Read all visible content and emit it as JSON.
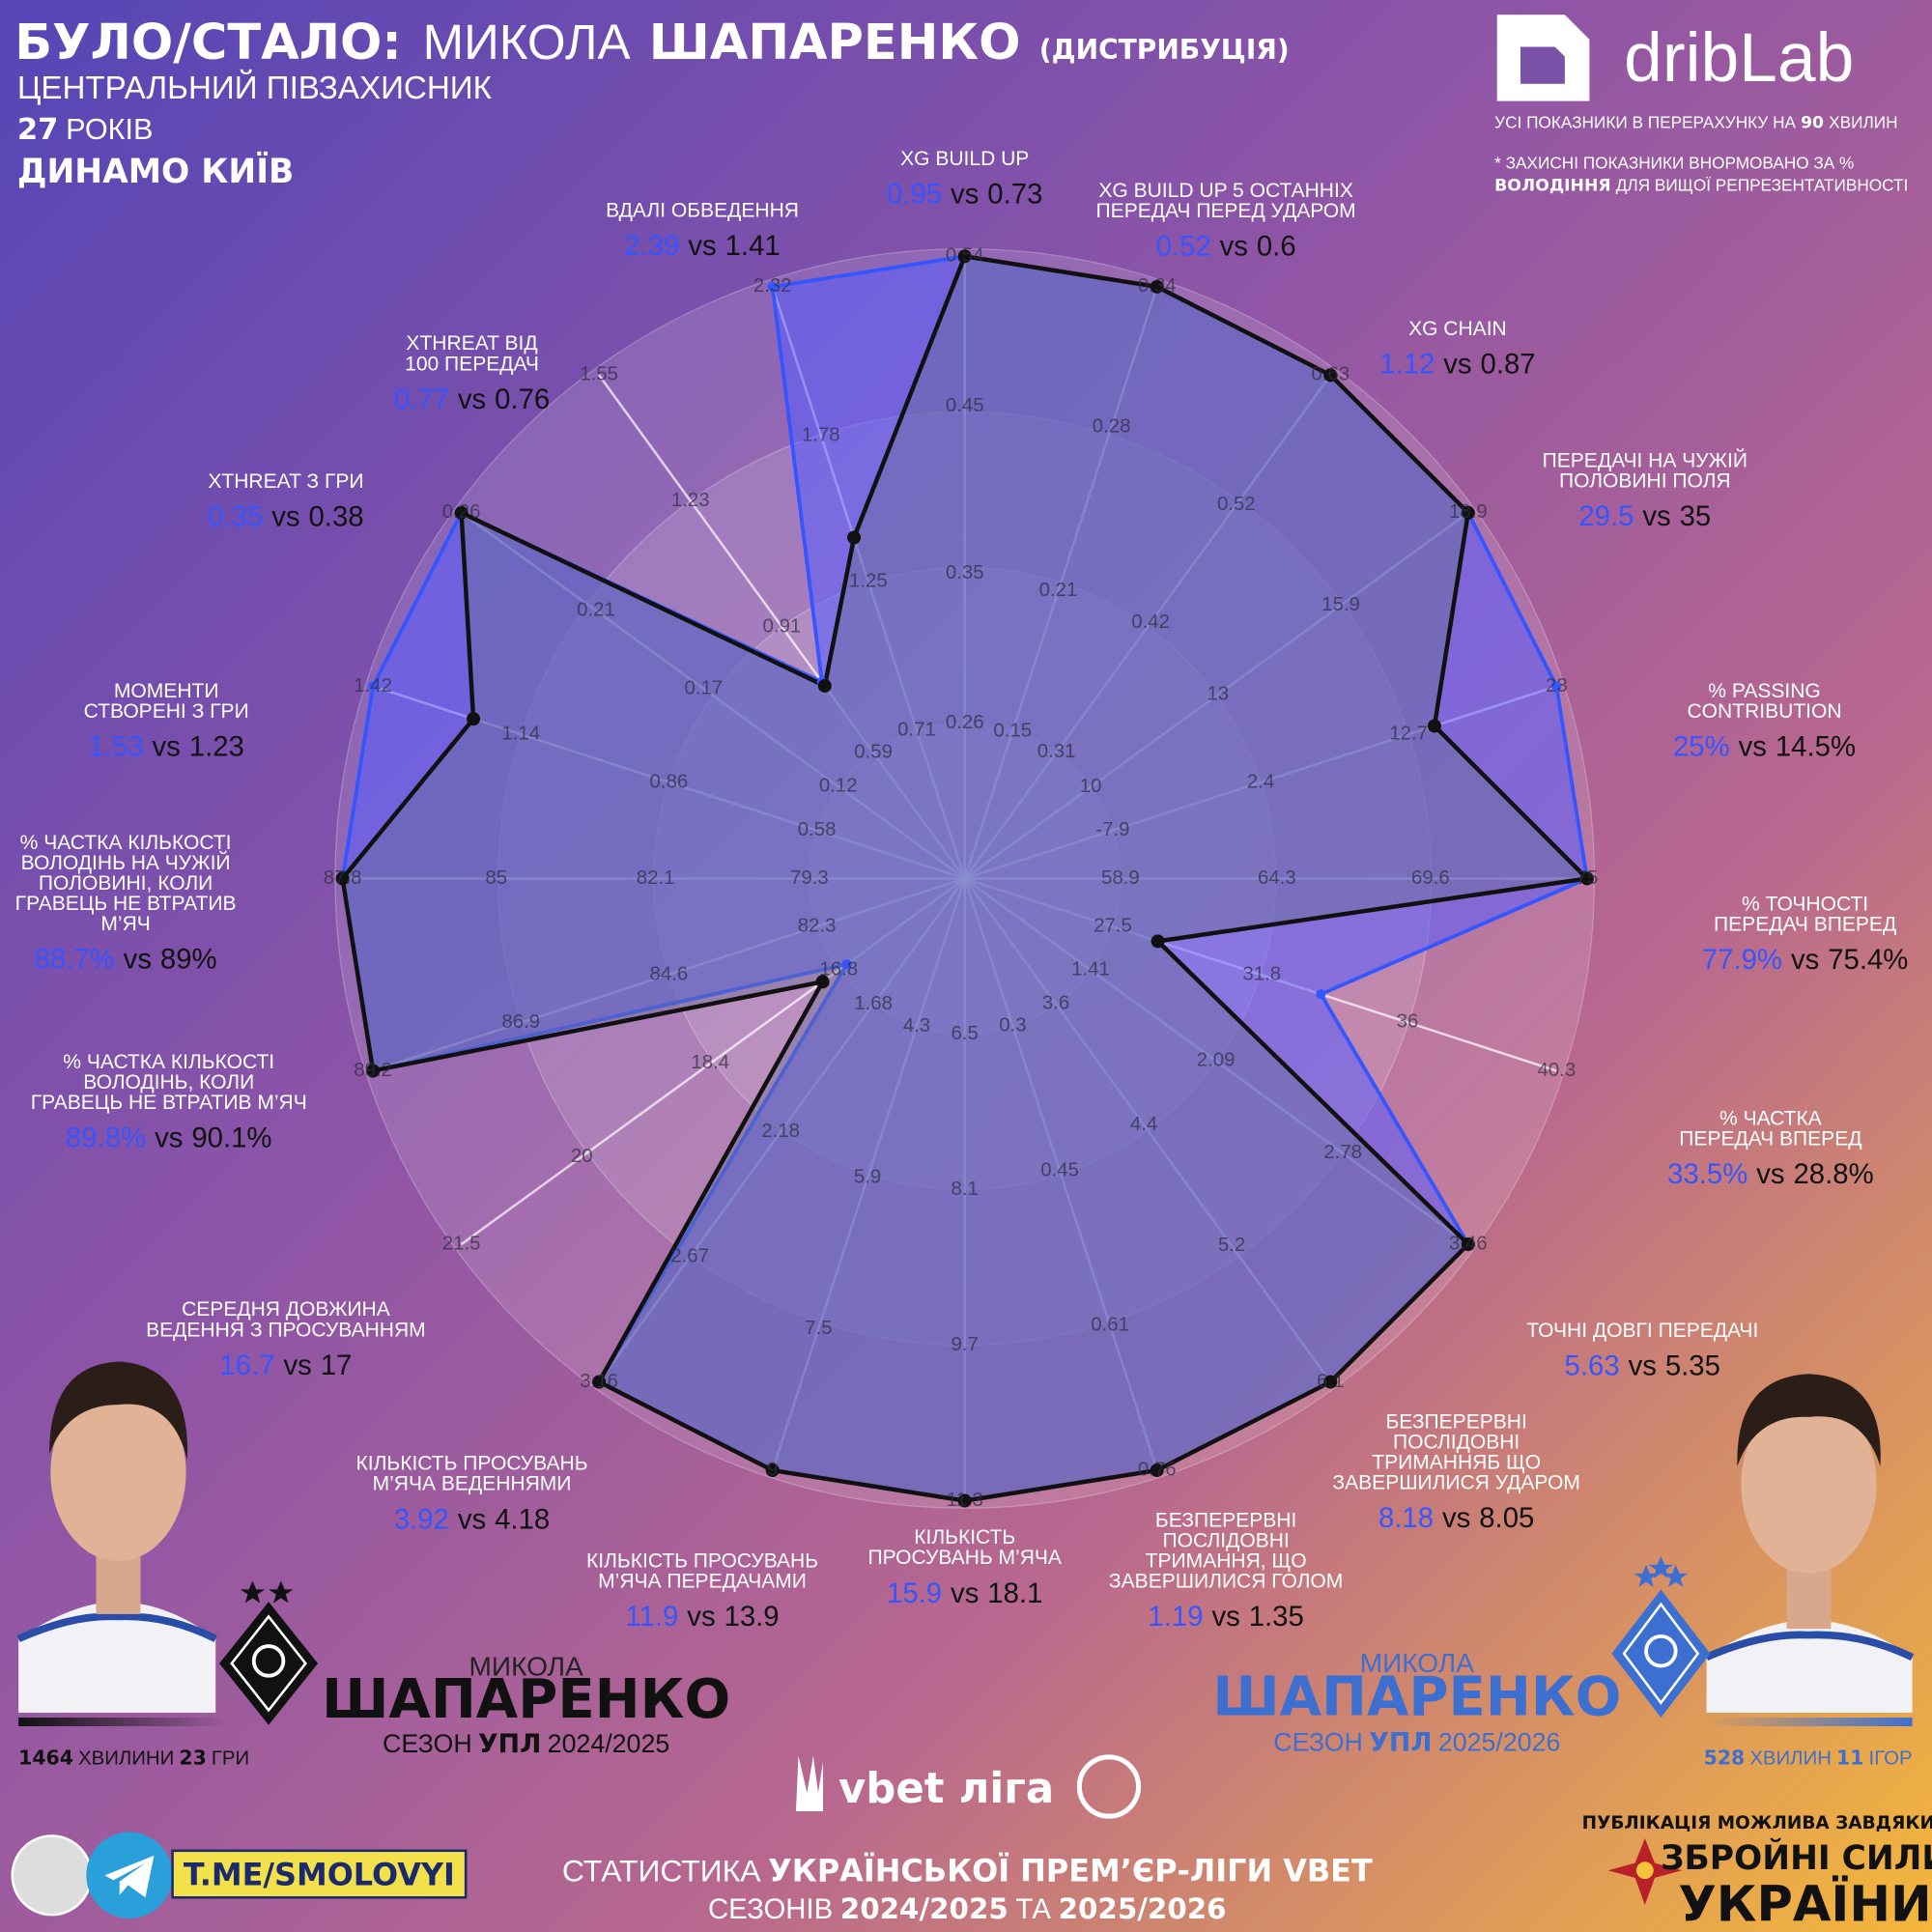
{
  "header": {
    "title": [
      "БУЛО/СТАЛО:",
      "МИКОЛА",
      "ШАПАРЕНКО",
      "(ДИСТРИБУЦІЯ)"
    ],
    "position": "ЦЕНТРАЛЬНИЙ ПІВЗАХИСНИК",
    "age": [
      "27",
      "РОКІВ"
    ],
    "club": "ДИНАМО КИЇВ"
  },
  "brand": {
    "name": "dribLab",
    "note": [
      "УСІ ПОКАЗНИКИ В ПЕРЕРАХУНКУ НА",
      "90",
      "ХВИЛИН"
    ],
    "footnote": [
      "* ЗАХИСНІ ПОКАЗНИКИ ВНОРМОВАНО ЗА %",
      "ВОЛОДІННЯ",
      "ДЛЯ ВИЩОЇ РЕПРЕЗЕНТАТИВНОСТІ"
    ]
  },
  "chart_data": {
    "type": "radar",
    "separator": "vs",
    "categories": [
      [
        "XG BUILD UP"
      ],
      [
        "XG BUILD UP 5 ОСТАННІХ",
        "ПЕРЕДАЧ ПЕРЕД УДАРОМ"
      ],
      [
        "XG CHAIN"
      ],
      [
        "ПЕРЕДАЧІ НА ЧУЖІЙ",
        "ПОЛОВИНІ ПОЛЯ"
      ],
      [
        "% PASSING",
        "CONTRIBUTION"
      ],
      [
        "% ТОЧНОСТІ",
        "ПЕРЕДАЧ ВПЕРЕД"
      ],
      [
        "% ЧАСТКА",
        "ПЕРЕДАЧ ВПЕРЕД"
      ],
      [
        "ТОЧНІ ДОВГІ ПЕРЕДАЧІ"
      ],
      [
        "БЕЗПЕРЕРВНІ",
        "ПОСЛІДОВНІ",
        "ТРИМАННЯБ ЩО",
        "ЗАВЕРШИЛИСЯ УДАРОМ"
      ],
      [
        "БЕЗПЕРЕРВНІ",
        "ПОСЛІДОВНІ",
        "ТРИМАННЯ, ЩО",
        "ЗАВЕРШИЛИСЯ ГОЛОМ"
      ],
      [
        "КІЛЬКІСТЬ",
        "ПРОСУВАНЬ М’ЯЧА"
      ],
      [
        "КІЛЬКІСТЬ ПРОСУВАНЬ",
        "М’ЯЧА ПЕРЕДАЧАМИ"
      ],
      [
        "КІЛЬКІСТЬ ПРОСУВАНЬ",
        "М’ЯЧА ВЕДЕННЯМИ"
      ],
      [
        "СЕРЕДНЯ ДОВЖИНА",
        "ВЕДЕННЯ З ПРОСУВАННЯМ"
      ],
      [
        "% ЧАСТКА КІЛЬКОСТІ",
        "ВОЛОДІНЬ, КОЛИ",
        "ГРАВЕЦЬ НЕ ВТРАТИВ М’ЯЧ"
      ],
      [
        "% ЧАСТКА КІЛЬКОСТІ",
        "ВОЛОДІНЬ НА ЧУЖІЙ",
        "ПОЛОВИНІ, КОЛИ",
        "ГРАВЕЦЬ НЕ ВТРАТИВ",
        "М’ЯЧ"
      ],
      [
        "МОМЕНТИ",
        "СТВОРЕНІ З ГРИ"
      ],
      [
        "XTHREAT З ГРИ"
      ],
      [
        "XTHREAT ВІД",
        "100 ПЕРЕДАЧ"
      ],
      [
        "ВДАЛІ ОБВЕДЕННЯ"
      ]
    ],
    "axes": [
      {
        "ylim": [
          0.167,
          0.54
        ],
        "yticks": [
          0.26,
          0.35,
          0.45,
          0.54
        ]
      },
      {
        "ylim": [
          0.087,
          0.34
        ],
        "yticks": [
          0.15,
          0.21,
          0.28,
          0.34
        ]
      },
      {
        "ylim": [
          0.203,
          0.63
        ],
        "yticks": [
          0.31,
          0.42,
          0.52,
          0.63
        ]
      },
      {
        "ylim": [
          7.03,
          18.9
        ],
        "yticks": [
          10,
          13,
          15.9,
          18.9
        ]
      },
      {
        "ylim": [
          -18.2,
          23
        ],
        "yticks": [
          -7.9,
          2.4,
          12.7,
          23
        ]
      },
      {
        "ylim": [
          53.53,
          75
        ],
        "yticks": [
          58.9,
          64.3,
          69.6,
          75
        ]
      },
      {
        "ylim": [
          23.23,
          40.3
        ],
        "yticks": [
          27.5,
          31.8,
          36,
          40.3
        ]
      },
      {
        "ylim": [
          0.727,
          3.46
        ],
        "yticks": [
          1.41,
          2.09,
          2.78,
          3.46
        ]
      },
      {
        "ylim": [
          2.77,
          6.1
        ],
        "yticks": [
          3.6,
          4.4,
          5.2,
          6.1
        ]
      },
      {
        "ylim": [
          0.147,
          0.76
        ],
        "yticks": [
          0.3,
          0.45,
          0.61,
          0.76
        ]
      },
      {
        "ylim": [
          4.9,
          11.3
        ],
        "yticks": [
          6.5,
          8.1,
          9.7,
          11.3
        ]
      },
      {
        "ylim": [
          2.73,
          9
        ],
        "yticks": [
          4.3,
          5.9,
          7.5,
          9
        ]
      },
      {
        "ylim": [
          1.187,
          3.16
        ],
        "yticks": [
          1.68,
          2.18,
          2.67,
          3.16
        ]
      },
      {
        "ylim": [
          15.23,
          21.5
        ],
        "yticks": [
          16.8,
          18.4,
          20,
          21.5
        ]
      },
      {
        "ylim": [
          80,
          89.2
        ],
        "yticks": [
          82.3,
          84.6,
          86.9,
          89.2
        ]
      },
      {
        "ylim": [
          76.47,
          87.8
        ],
        "yticks": [
          79.3,
          82.1,
          85,
          87.8
        ]
      },
      {
        "ylim": [
          0.3,
          1.42
        ],
        "yticks": [
          0.58,
          0.86,
          1.14,
          1.42
        ]
      },
      {
        "ylim": [
          0.073,
          0.26
        ],
        "yticks": [
          0.12,
          0.17,
          0.21,
          0.26
        ]
      },
      {
        "ylim": [
          0.27,
          1.55
        ],
        "yticks": [
          0.59,
          0.91,
          1.23,
          1.55
        ]
      },
      {
        "ylim": [
          0.173,
          2.32
        ],
        "yticks": [
          0.71,
          1.25,
          1.78,
          2.32
        ]
      }
    ],
    "series": [
      {
        "color": "#3556ff",
        "values": [
          0.95,
          0.52,
          1.12,
          29.5,
          25,
          77.9,
          33.5,
          5.63,
          8.18,
          1.19,
          15.9,
          11.9,
          3.92,
          16.7,
          89.8,
          88.7,
          1.53,
          0.35,
          0.77,
          2.39
        ],
        "value_labels": [
          "0.95",
          "0.52",
          "1.12",
          "29.5",
          "25%",
          "77.9%",
          "33.5%",
          "5.63",
          "8.18",
          "1.19",
          "15.9",
          "11.9",
          "3.92",
          "16.7",
          "89.8%",
          "88.7%",
          "1.53",
          "0.35",
          "0.77",
          "2.39"
        ]
      },
      {
        "color": "#111111",
        "values": [
          0.73,
          0.6,
          0.87,
          35,
          14.5,
          75.4,
          28.8,
          5.35,
          8.05,
          1.35,
          18.1,
          13.9,
          4.18,
          17,
          90.1,
          89,
          1.23,
          0.38,
          0.76,
          1.41
        ],
        "value_labels": [
          "0.73",
          "0.6",
          "0.87",
          "35",
          "14.5%",
          "75.4%",
          "28.8%",
          "5.35",
          "8.05",
          "1.35",
          "18.1",
          "13.9",
          "4.18",
          "17",
          "90.1%",
          "89%",
          "1.23",
          "0.38",
          "0.76",
          "1.41"
        ]
      }
    ]
  },
  "players": [
    {
      "first": "МИКОЛА",
      "last": "ШАПАРЕНКО",
      "season": [
        "СЕЗОН",
        "УПЛ",
        "2024/2025"
      ],
      "minutes": [
        "1464",
        "ХВИЛИНИ",
        "23",
        "ГРИ"
      ]
    },
    {
      "first": "МИКОЛА",
      "last": "ШАПАРЕНКО",
      "season": [
        "СЕЗОН",
        "УПЛ",
        "2025/2026"
      ],
      "minutes": [
        "528",
        "ХВИЛИН",
        "11",
        "ІГОР"
      ]
    }
  ],
  "footer": {
    "channel": "T.ME/SMOLOVYI",
    "league": "vbet ліга",
    "stats_line1": [
      "СТАТИСТИКА",
      "УКРАЇНСЬКОЇ ПРЕМ’ЄР-ЛІГИ VBET"
    ],
    "stats_line2": [
      "СЕЗОНІВ",
      "2024/2025",
      "ТА",
      "2025/2026"
    ],
    "thanks": "ПУБЛІКАЦІЯ МОЖЛИВА ЗАВДЯКИ:",
    "army": [
      "ЗБРОЙНІ СИЛИ",
      "УКРАЇНИ"
    ]
  }
}
